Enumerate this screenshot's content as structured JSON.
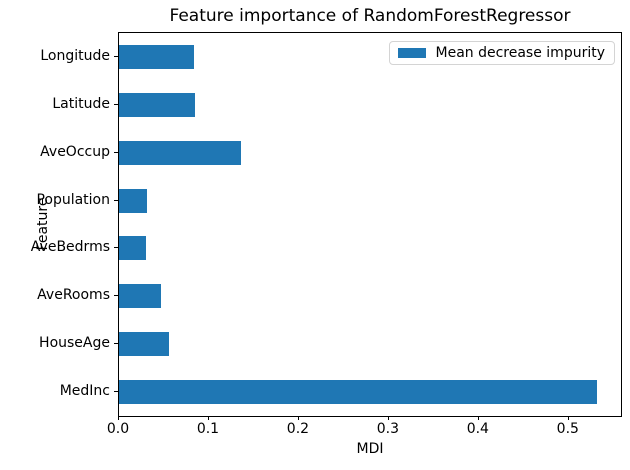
{
  "window": {
    "background": "#ffffff"
  },
  "chart_data": {
    "type": "bar",
    "orientation": "horizontal",
    "title": "Feature importance of RandomForestRegressor",
    "xlabel": "MDI",
    "ylabel": "Feature",
    "categories_top_to_bottom": [
      "Longitude",
      "Latitude",
      "AveOccup",
      "Population",
      "AveBedrms",
      "AveRooms",
      "HouseAge",
      "MedInc"
    ],
    "values": [
      0.083,
      0.084,
      0.136,
      0.031,
      0.03,
      0.047,
      0.056,
      0.531
    ],
    "series_name": "Mean decrease impurity",
    "xlim": [
      0,
      0.558
    ],
    "xticks": [
      0.0,
      0.1,
      0.2,
      0.3,
      0.4,
      0.5
    ],
    "xtick_labels": [
      "0.0",
      "0.1",
      "0.2",
      "0.3",
      "0.4",
      "0.5"
    ],
    "grid": false,
    "bar_color": "#1f77b4",
    "spine_color": "#000000",
    "legend": {
      "label": "Mean decrease impurity",
      "position": "upper right"
    }
  }
}
